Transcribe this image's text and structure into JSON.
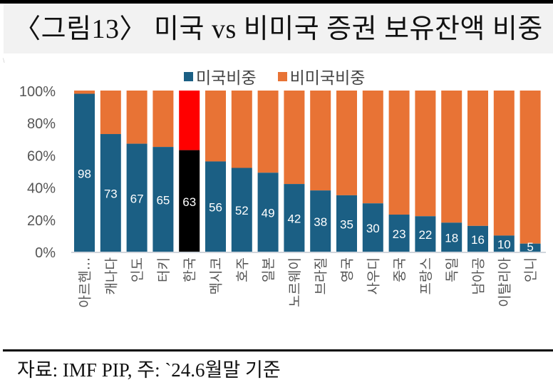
{
  "header": {
    "title": "〈그림13〉  미국 vs 비미국 증권 보유잔액 비중"
  },
  "footer": {
    "source": "자료: IMF PIP,  주: `24.6월말  기준"
  },
  "colors": {
    "us": "#1b5f84",
    "non_us": "#e87335",
    "highlight_us": "#000000",
    "highlight_non_us": "#ff0000",
    "axis_text": "#555555",
    "axis_line": "#d0d5dc"
  },
  "chart_data": {
    "type": "bar",
    "stacked": true,
    "title": "",
    "xlabel": "",
    "ylabel": "",
    "ylim": [
      0,
      100
    ],
    "yticks": [
      "0%",
      "20%",
      "40%",
      "60%",
      "80%",
      "100%"
    ],
    "legend_position": "top-center",
    "grid": false,
    "categories": [
      "아르헨...",
      "캐나다",
      "인도",
      "터키",
      "한국",
      "멕시코",
      "호주",
      "일본",
      "노르웨이",
      "브라질",
      "영국",
      "사우디",
      "중국",
      "프랑스",
      "독일",
      "남아공",
      "이탈리아",
      "인니"
    ],
    "highlight_category": "한국",
    "series": [
      {
        "name": "미국비중",
        "values": [
          98,
          73,
          67,
          65,
          63,
          56,
          52,
          49,
          42,
          38,
          35,
          30,
          23,
          22,
          18,
          16,
          10,
          5
        ]
      },
      {
        "name": "비미국비중",
        "values": [
          2,
          27,
          33,
          35,
          37,
          44,
          48,
          51,
          58,
          62,
          65,
          70,
          77,
          78,
          82,
          84,
          90,
          95
        ]
      }
    ],
    "data_labels": [
      "98",
      "73",
      "67",
      "65",
      "63",
      "56",
      "52",
      "49",
      "42",
      "38",
      "35",
      "30",
      "23",
      "22",
      "18",
      "16",
      "10",
      "5"
    ]
  }
}
